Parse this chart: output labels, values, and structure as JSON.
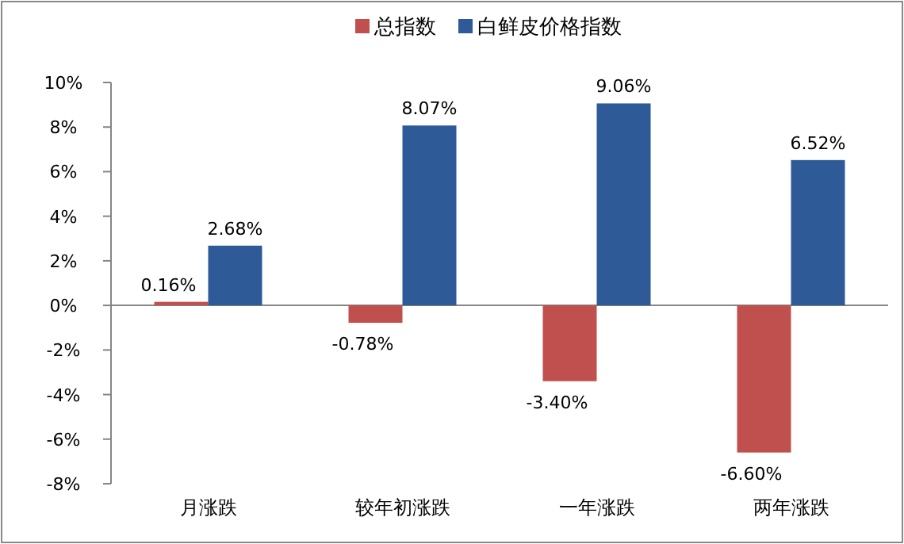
{
  "chart_data": {
    "type": "bar",
    "categories": [
      "月涨跌",
      "较年初涨跌",
      "一年涨跌",
      "两年涨跌"
    ],
    "series": [
      {
        "name": "总指数",
        "color": "#c0504d",
        "values": [
          0.16,
          -0.78,
          -3.4,
          -6.6
        ],
        "value_labels": [
          "0.16%",
          "-0.78%",
          "-3.40%",
          "-6.60%"
        ]
      },
      {
        "name": "白鲜皮价格指数",
        "color": "#2e5b97",
        "values": [
          2.68,
          8.07,
          9.06,
          6.52
        ],
        "value_labels": [
          "2.68%",
          "8.07%",
          "9.06%",
          "6.52%"
        ]
      }
    ],
    "ylim": [
      -8,
      10
    ],
    "yticks": [
      {
        "value": -8,
        "label": "-8%"
      },
      {
        "value": -6,
        "label": "-6%"
      },
      {
        "value": -4,
        "label": "-4%"
      },
      {
        "value": -2,
        "label": "-2%"
      },
      {
        "value": 0,
        "label": "0%"
      },
      {
        "value": 2,
        "label": "2%"
      },
      {
        "value": 4,
        "label": "4%"
      },
      {
        "value": 6,
        "label": "6%"
      },
      {
        "value": 8,
        "label": "8%"
      },
      {
        "value": 10,
        "label": "10%"
      }
    ],
    "legend": "top"
  }
}
